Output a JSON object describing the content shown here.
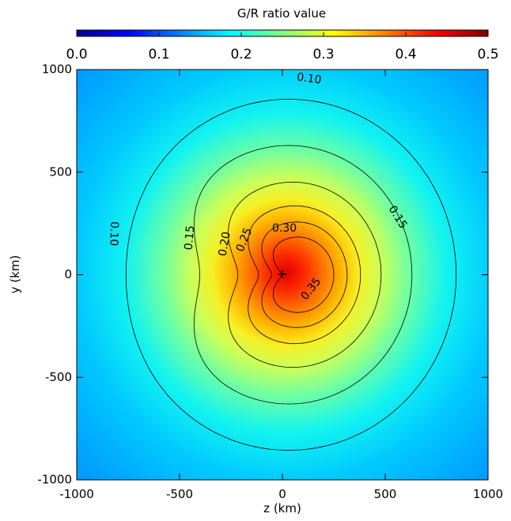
{
  "chart_data": {
    "type": "heatmap",
    "colorbar": {
      "title": "G/R ratio value",
      "range": [
        0.0,
        0.5
      ],
      "ticks": [
        "0.0",
        "0.1",
        "0.2",
        "0.3",
        "0.4",
        "0.5"
      ],
      "colormap": "jet"
    },
    "xlabel": "z (km)",
    "ylabel": "y (km)",
    "xlim": [
      -1000,
      1000
    ],
    "ylim": [
      -1000,
      1000
    ],
    "xticks": [
      "-1000",
      "-500",
      "0",
      "500",
      "1000"
    ],
    "yticks": [
      "-1000",
      "-500",
      "0",
      "500",
      "1000"
    ],
    "marker": {
      "symbol": "+",
      "x": 0,
      "y": 0
    },
    "contours": [
      {
        "level": 0.1,
        "label": "0.10"
      },
      {
        "level": 0.15,
        "label": "0.15"
      },
      {
        "level": 0.2,
        "label": "0.20"
      },
      {
        "level": 0.25,
        "label": "0.25"
      },
      {
        "level": 0.3,
        "label": "0.30"
      },
      {
        "level": 0.35,
        "label": "0.35"
      }
    ],
    "contour_labels": [
      {
        "text": "0.10",
        "x": 130,
        "y": 955,
        "rotate": 8
      },
      {
        "text": "0.10",
        "x": -820,
        "y": 200,
        "rotate": 92
      },
      {
        "text": "0.15",
        "x": -450,
        "y": 180,
        "rotate": -85
      },
      {
        "text": "0.15",
        "x": 560,
        "y": 280,
        "rotate": 58
      },
      {
        "text": "0.20",
        "x": -280,
        "y": 150,
        "rotate": -80
      },
      {
        "text": "0.25",
        "x": -185,
        "y": 170,
        "rotate": -68
      },
      {
        "text": "0.30",
        "x": 10,
        "y": 225,
        "rotate": 0
      },
      {
        "text": "0.35",
        "x": 140,
        "y": -70,
        "rotate": -52
      }
    ],
    "grid": false
  }
}
